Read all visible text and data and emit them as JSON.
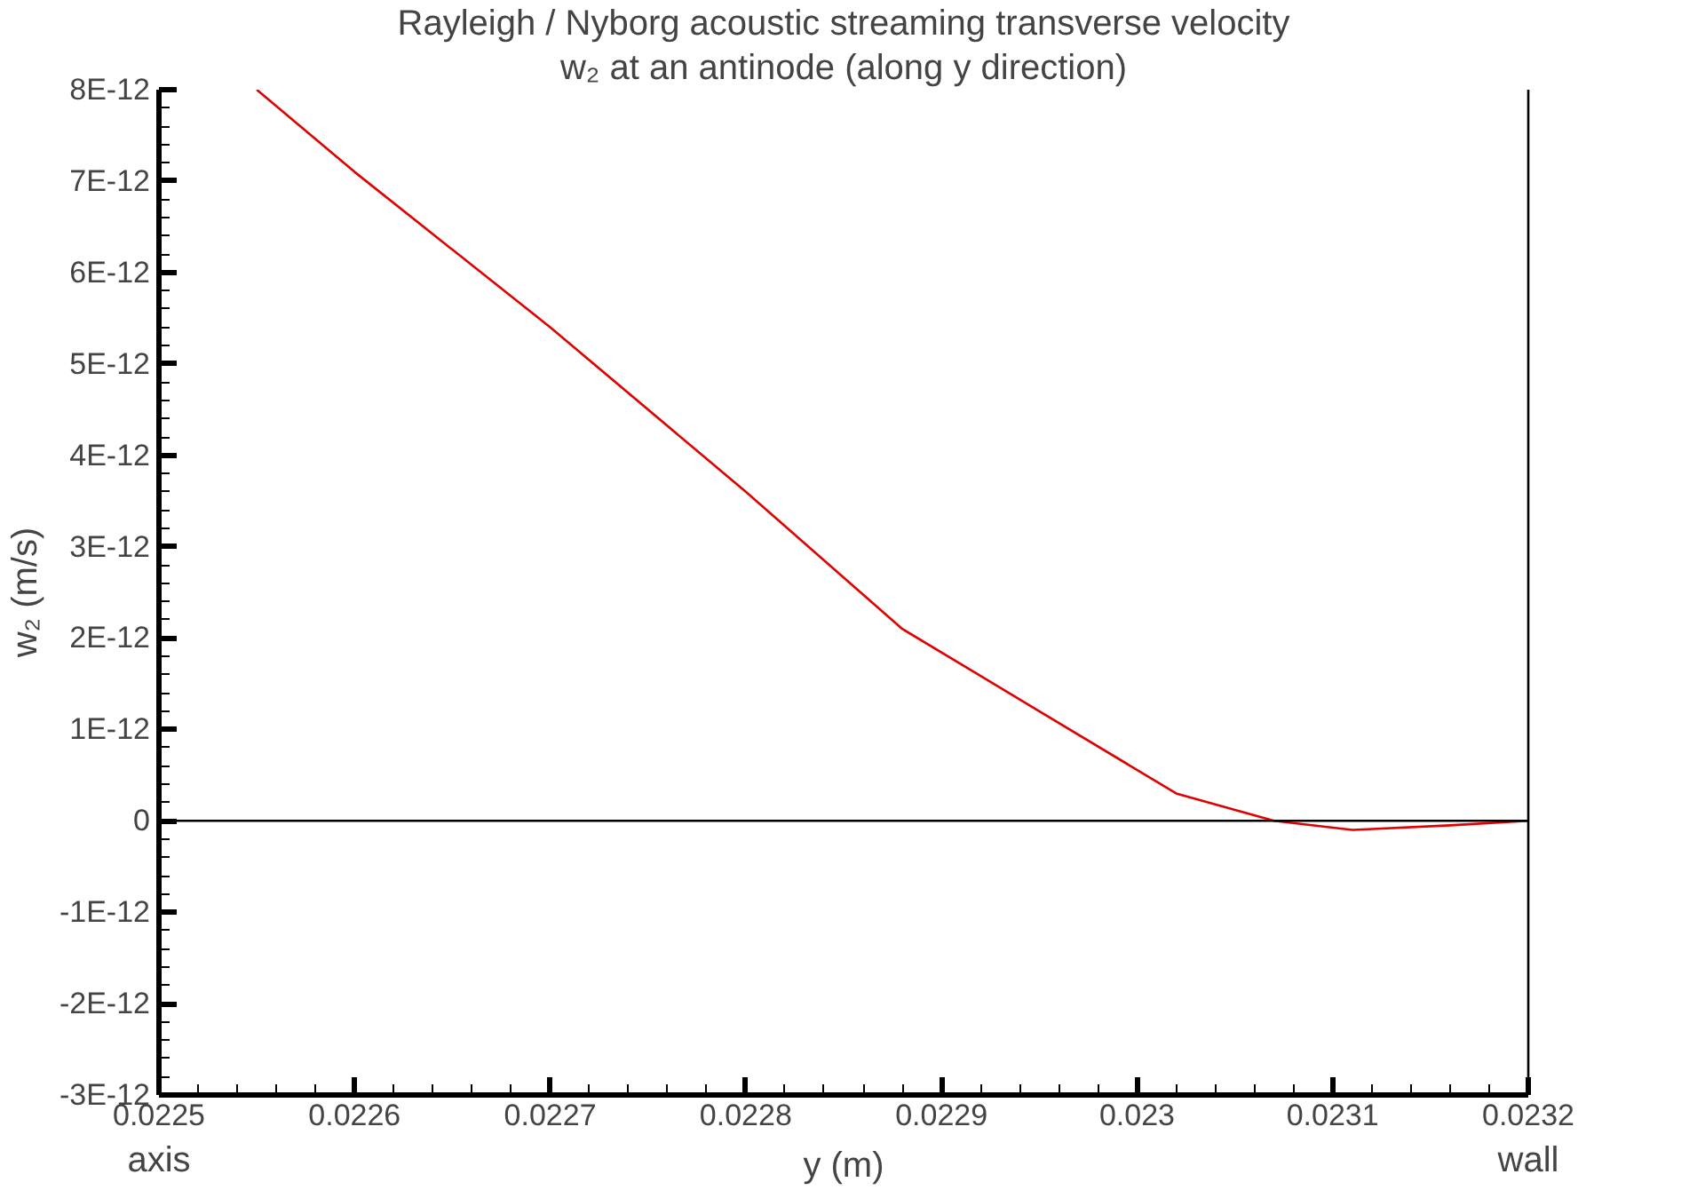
{
  "chart_data": {
    "type": "line",
    "title": "Rayleigh / Nyborg acoustic streaming transverse velocity",
    "subtitle": "w₂ at an antinode (along y direction)",
    "xlabel": "y (m)",
    "ylabel": "w₂ (m/s)",
    "x": [
      0.02255,
      0.0226,
      0.0227,
      0.0228,
      0.02288,
      0.02295,
      0.02302,
      0.02307,
      0.02311,
      0.02316,
      0.0232
    ],
    "series": [
      {
        "color": "#e00000",
        "values": [
          8e-12,
          7.1e-12,
          5.4e-12,
          3.6e-12,
          2.1e-12,
          1.2e-12,
          3e-13,
          0,
          -1e-13,
          -5e-14,
          0
        ]
      }
    ],
    "xlim": [
      0.0225,
      0.0232
    ],
    "xticks": [
      0.0225,
      0.0226,
      0.0227,
      0.0228,
      0.0229,
      0.023,
      0.0231,
      0.0232
    ],
    "ylim": [
      -3e-12,
      8e-12
    ],
    "yticks": [
      {
        "value": -3e-12,
        "label": "-3E-12"
      },
      {
        "value": -2e-12,
        "label": "-2E-12"
      },
      {
        "value": -1e-12,
        "label": "-1E-12"
      },
      {
        "value": 0,
        "label": "0"
      },
      {
        "value": 1e-12,
        "label": "1E-12"
      },
      {
        "value": 2e-12,
        "label": "2E-12"
      },
      {
        "value": 3e-12,
        "label": "3E-12"
      },
      {
        "value": 4e-12,
        "label": "4E-12"
      },
      {
        "value": 5e-12,
        "label": "5E-12"
      },
      {
        "value": 6e-12,
        "label": "6E-12"
      },
      {
        "value": 7e-12,
        "label": "7E-12"
      },
      {
        "value": 8e-12,
        "label": "8E-12"
      }
    ],
    "ref_lines": [
      {
        "axis": "y",
        "value": 0,
        "color": "#000000"
      }
    ],
    "annotations": [
      "axis",
      "wall"
    ],
    "grid": false,
    "marker": "none",
    "line_style": "solid"
  }
}
